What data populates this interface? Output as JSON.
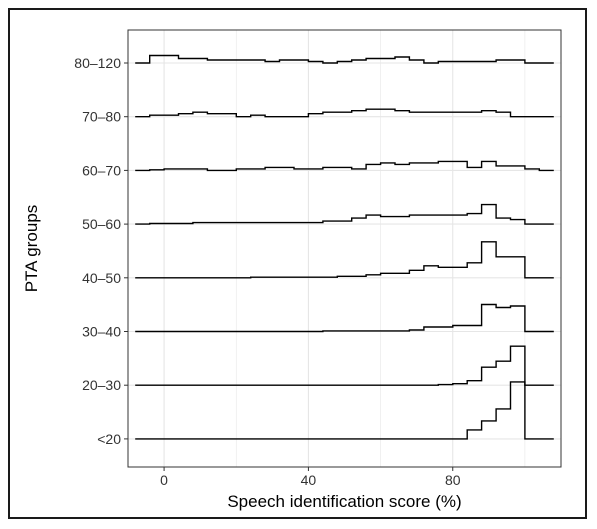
{
  "chart_data": {
    "type": "ridgeline-step",
    "title": "",
    "xlabel": "Speech identification score (%)",
    "ylabel": "PTA groups",
    "xlim": [
      -10,
      110
    ],
    "x_ticks": [
      0,
      40,
      80
    ],
    "x_tick_labels": [
      "0",
      "40",
      "80"
    ],
    "grid": true,
    "colors": {
      "line": "#000000",
      "grid": "#e6e6e6",
      "panel_border": "#333333"
    },
    "bin_edges": [
      -8,
      -4,
      0,
      4,
      8,
      12,
      16,
      20,
      24,
      28,
      32,
      36,
      40,
      44,
      48,
      52,
      56,
      60,
      64,
      68,
      72,
      76,
      80,
      84,
      88,
      92,
      96,
      100,
      104,
      108
    ],
    "groups": [
      "80–120",
      "70–80",
      "60–70",
      "50–60",
      "40–50",
      "30–40",
      "20–30",
      "<20"
    ],
    "series": [
      {
        "name": "80–120",
        "values": [
          0.0,
          0.25,
          0.25,
          0.15,
          0.15,
          0.1,
          0.1,
          0.1,
          0.1,
          0.05,
          0.1,
          0.1,
          0.05,
          0.0,
          0.05,
          0.1,
          0.15,
          0.15,
          0.2,
          0.1,
          0.0,
          0.05,
          0.05,
          0.05,
          0.05,
          0.1,
          0.1,
          0.0,
          0.0
        ]
      },
      {
        "name": "70–80",
        "values": [
          0.0,
          0.05,
          0.05,
          0.1,
          0.15,
          0.1,
          0.1,
          0.0,
          0.05,
          0.0,
          0.0,
          0.0,
          0.1,
          0.15,
          0.15,
          0.2,
          0.25,
          0.25,
          0.2,
          0.15,
          0.15,
          0.15,
          0.15,
          0.15,
          0.2,
          0.15,
          0.0,
          0.0,
          0.0
        ]
      },
      {
        "name": "60–70",
        "values": [
          0.0,
          0.02,
          0.05,
          0.05,
          0.05,
          0.0,
          0.0,
          0.05,
          0.05,
          0.1,
          0.1,
          0.05,
          0.05,
          0.1,
          0.1,
          0.05,
          0.2,
          0.25,
          0.2,
          0.25,
          0.25,
          0.3,
          0.3,
          0.1,
          0.3,
          0.15,
          0.15,
          0.05,
          0.0
        ]
      },
      {
        "name": "50–60",
        "values": [
          0.0,
          0.02,
          0.02,
          0.02,
          0.05,
          0.05,
          0.05,
          0.05,
          0.05,
          0.05,
          0.05,
          0.05,
          0.05,
          0.1,
          0.1,
          0.2,
          0.3,
          0.25,
          0.25,
          0.3,
          0.3,
          0.3,
          0.3,
          0.35,
          0.65,
          0.2,
          0.15,
          0.0,
          0.0
        ]
      },
      {
        "name": "40–50",
        "values": [
          0.0,
          0.0,
          0.0,
          0.0,
          0.0,
          0.0,
          0.0,
          0.0,
          0.02,
          0.02,
          0.02,
          0.02,
          0.02,
          0.02,
          0.05,
          0.05,
          0.1,
          0.15,
          0.15,
          0.25,
          0.4,
          0.35,
          0.35,
          0.5,
          1.2,
          0.7,
          0.7,
          0.0,
          0.0
        ]
      },
      {
        "name": "30–40",
        "values": [
          0.0,
          0.0,
          0.0,
          0.0,
          0.0,
          0.0,
          0.0,
          0.0,
          0.0,
          0.0,
          0.0,
          0.0,
          0.0,
          0.02,
          0.02,
          0.02,
          0.02,
          0.02,
          0.02,
          0.05,
          0.15,
          0.15,
          0.2,
          0.2,
          0.9,
          0.8,
          0.85,
          0.0,
          0.0
        ]
      },
      {
        "name": "20–30",
        "values": [
          0.0,
          0.0,
          0.0,
          0.0,
          0.0,
          0.0,
          0.0,
          0.0,
          0.0,
          0.0,
          0.0,
          0.0,
          0.0,
          0.0,
          0.0,
          0.0,
          0.0,
          0.0,
          0.0,
          0.0,
          0.0,
          0.02,
          0.05,
          0.15,
          0.6,
          0.8,
          1.3,
          0.0,
          0.0
        ]
      },
      {
        "name": "<20",
        "values": [
          0.0,
          0.0,
          0.0,
          0.0,
          0.0,
          0.0,
          0.0,
          0.0,
          0.0,
          0.0,
          0.0,
          0.0,
          0.0,
          0.0,
          0.0,
          0.0,
          0.0,
          0.0,
          0.0,
          0.0,
          0.0,
          0.0,
          0.0,
          0.3,
          0.6,
          1.0,
          1.9,
          0.0,
          0.0
        ]
      }
    ]
  }
}
